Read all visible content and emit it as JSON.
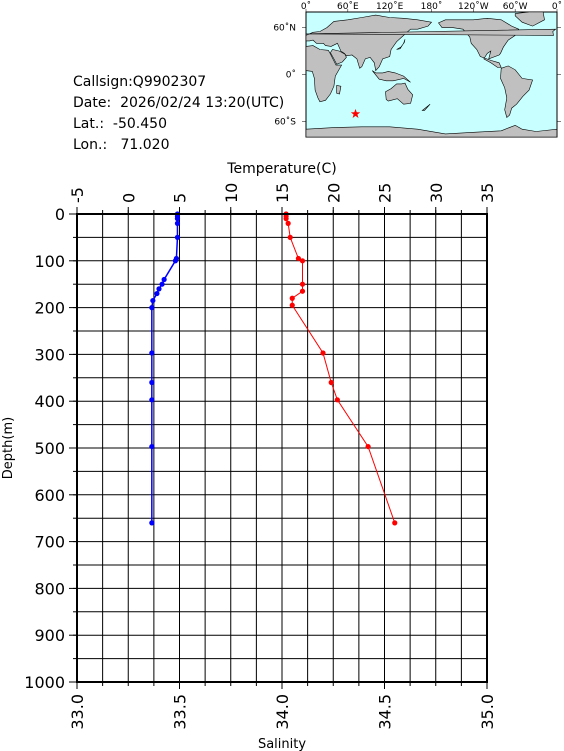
{
  "info": {
    "callsign": "Callsign:Q9902307",
    "date": "Date:  2026/02/24 13:20(UTC)",
    "lat": "Lat.:  -50.450",
    "lon": "Lon.:   71.020"
  },
  "map": {
    "lon_labels": [
      "0˚",
      "60˚E",
      "120˚E",
      "180˚",
      "120˚W",
      "60˚W",
      "0˚"
    ],
    "lat_labels": [
      "60˚N",
      "0˚",
      "60˚S"
    ],
    "marker_lon": 71.02,
    "marker_lat": -50.45,
    "colors": {
      "ocean": "#c8ffff",
      "land": "#c0c0c0",
      "marker": "#ff0000"
    }
  },
  "chart_data": {
    "type": "line",
    "ylabel": "Depth(m)",
    "ylim": [
      1000,
      0
    ],
    "yticks": [
      "0",
      "100",
      "200",
      "300",
      "400",
      "500",
      "600",
      "700",
      "800",
      "900",
      "1000"
    ],
    "top_axis": {
      "label": "Temperature(C)",
      "range": [
        -5,
        35
      ],
      "ticks": [
        "-5",
        "0",
        "5",
        "10",
        "15",
        "20",
        "25",
        "30",
        "35"
      ]
    },
    "bottom_axis": {
      "label": "Salinity",
      "range": [
        33.0,
        35.0
      ],
      "ticks": [
        "33.0",
        "33.5",
        "34.0",
        "34.5",
        "35.0"
      ]
    },
    "grid": true,
    "series": [
      {
        "axis": "top",
        "color": "#0000ff",
        "points": [
          [
            4.8,
            0
          ],
          [
            4.8,
            5
          ],
          [
            4.8,
            10
          ],
          [
            4.8,
            20
          ],
          [
            4.8,
            50
          ],
          [
            4.7,
            95
          ],
          [
            4.6,
            100
          ],
          [
            3.5,
            140
          ],
          [
            3.3,
            150
          ],
          [
            3.0,
            160
          ],
          [
            2.8,
            170
          ],
          [
            2.4,
            185
          ],
          [
            2.3,
            200
          ],
          [
            2.3,
            297
          ],
          [
            2.3,
            360
          ],
          [
            2.3,
            397
          ],
          [
            2.3,
            497
          ],
          [
            2.3,
            660
          ]
        ]
      },
      {
        "axis": "bottom",
        "color": "#ff0000",
        "points": [
          [
            34.02,
            0
          ],
          [
            34.02,
            5
          ],
          [
            34.02,
            10
          ],
          [
            34.03,
            20
          ],
          [
            34.04,
            50
          ],
          [
            34.08,
            95
          ],
          [
            34.1,
            100
          ],
          [
            34.1,
            150
          ],
          [
            34.1,
            165
          ],
          [
            34.05,
            180
          ],
          [
            34.05,
            195
          ],
          [
            34.2,
            297
          ],
          [
            34.24,
            360
          ],
          [
            34.27,
            397
          ],
          [
            34.42,
            497
          ],
          [
            34.55,
            660
          ]
        ]
      }
    ]
  }
}
